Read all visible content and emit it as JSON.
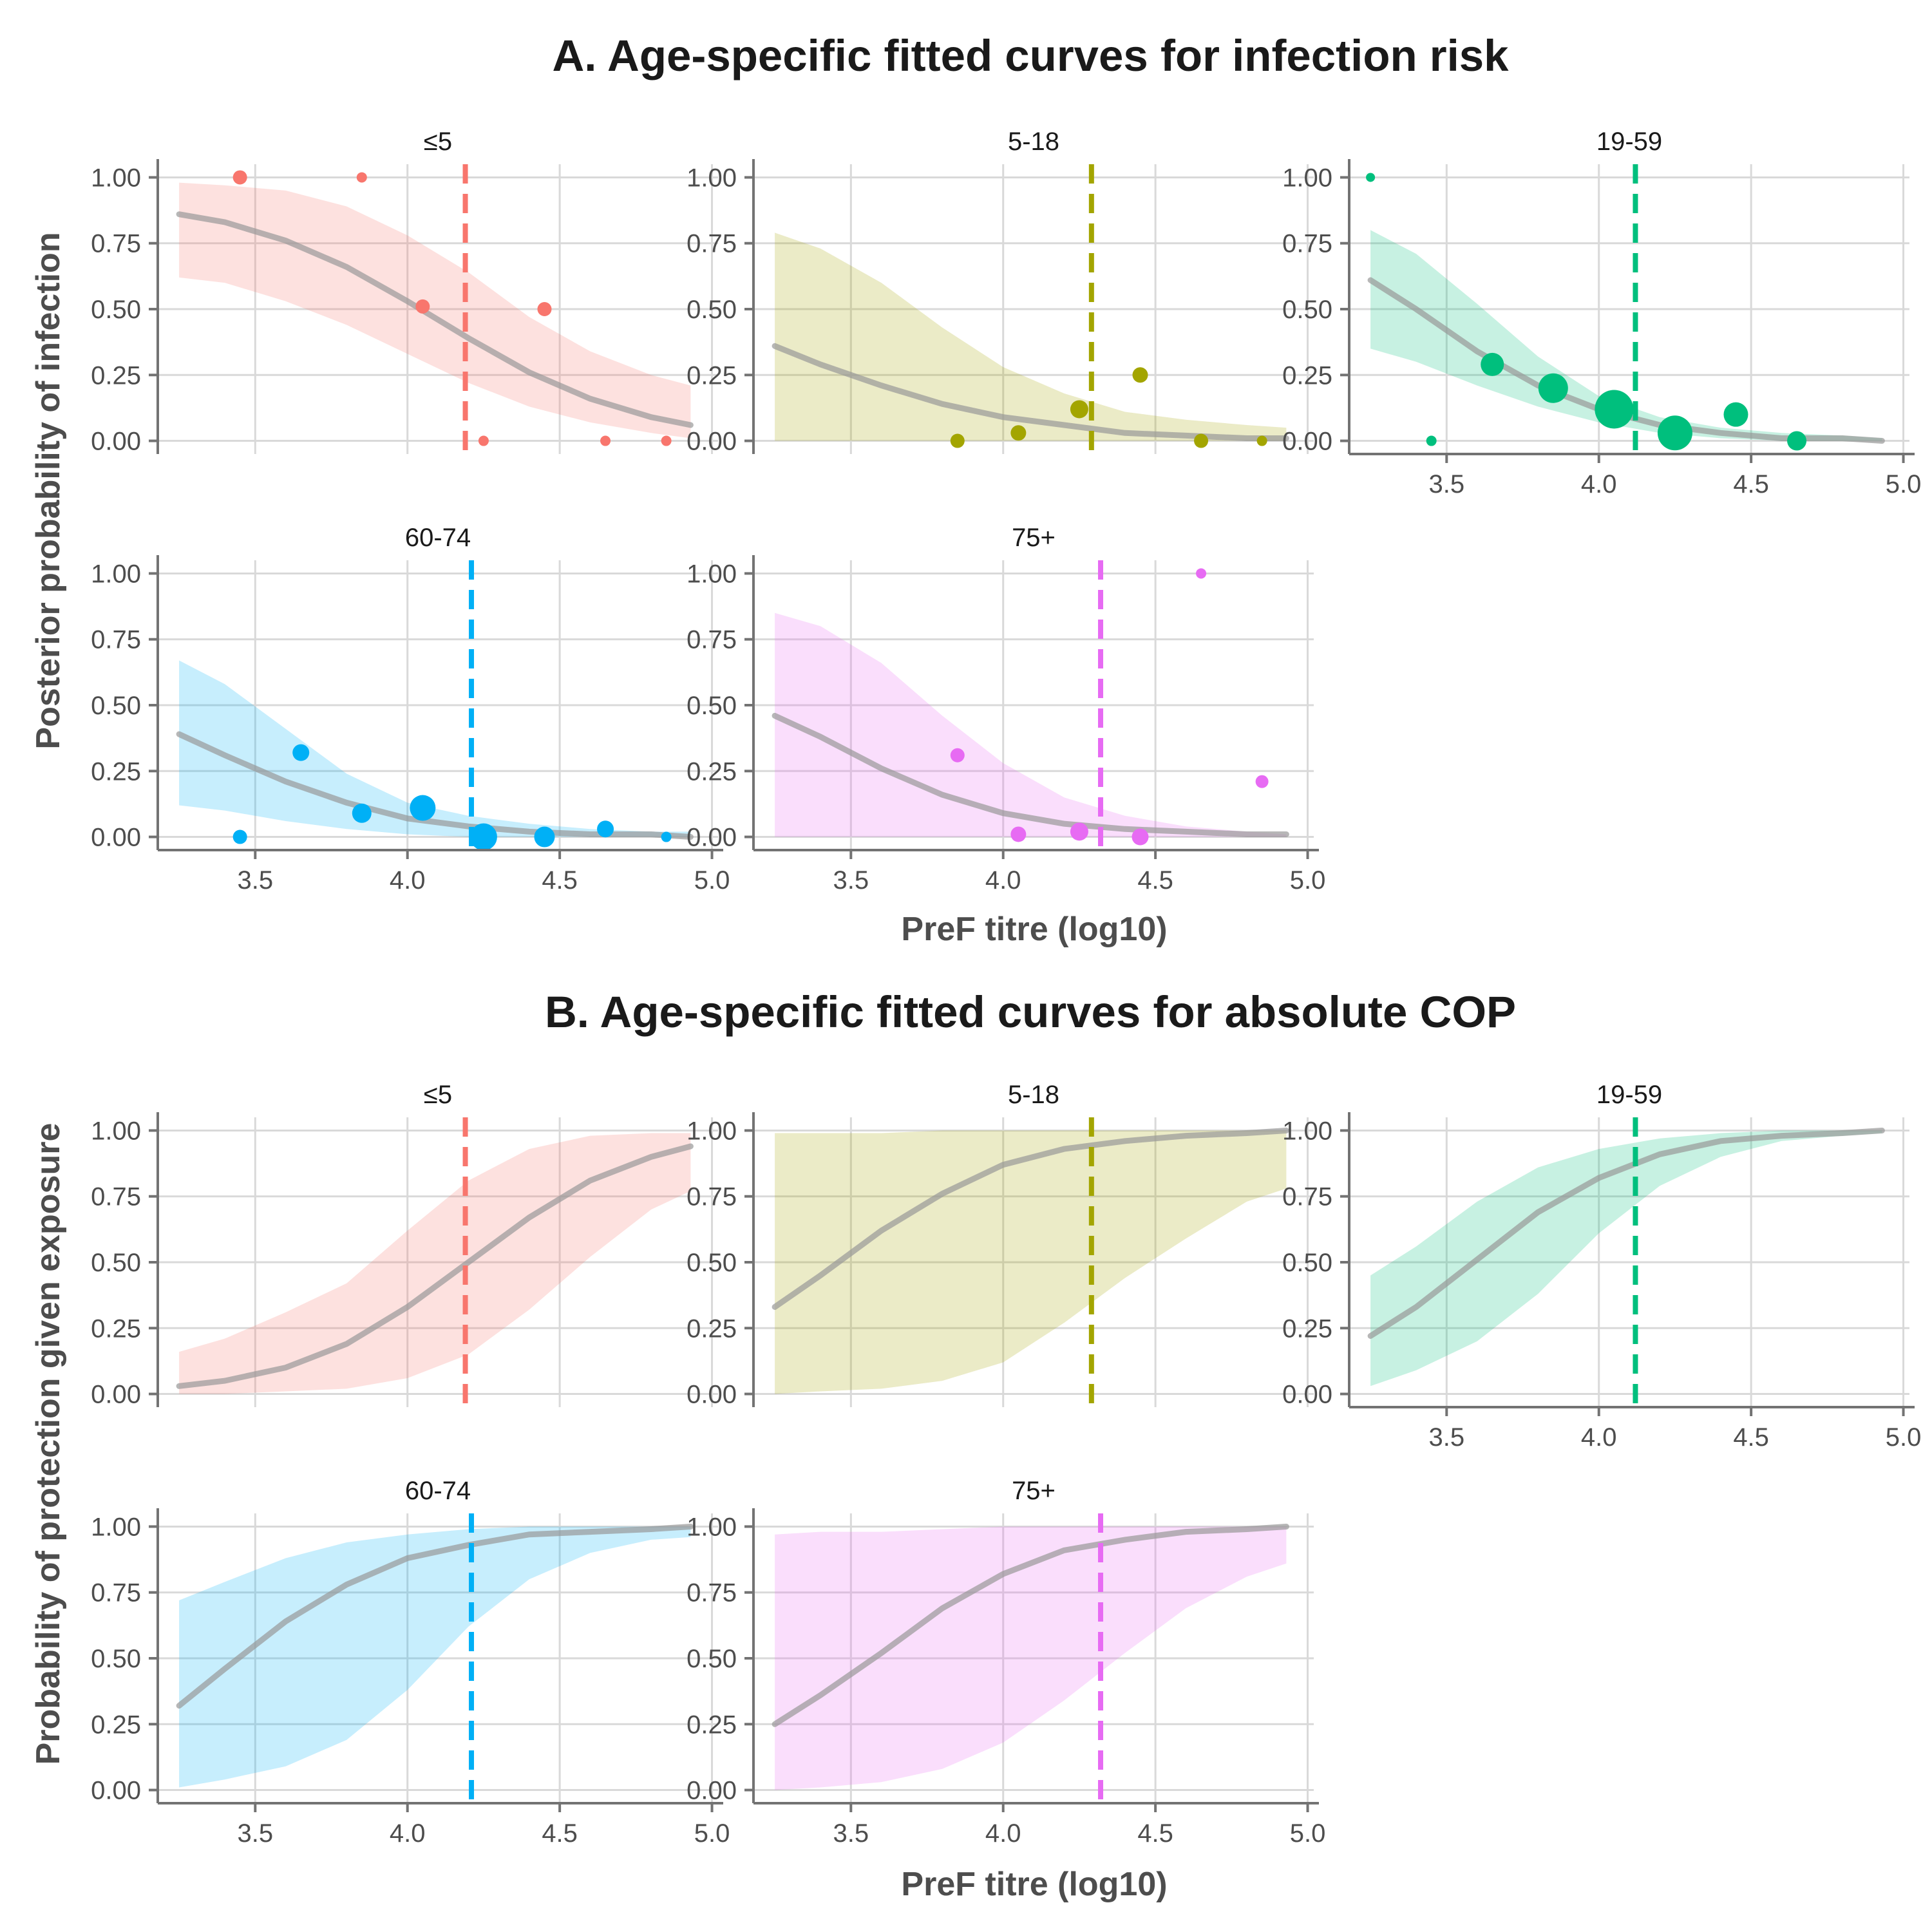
{
  "colors": {
    "le5": "#F8766D",
    "5-18": "#A3A500",
    "19-59": "#00BF7D",
    "60-74": "#00B0F6",
    "75+": "#E76BF3",
    "fitted_line": "#999999"
  },
  "chart_data": [
    {
      "title": "A. Age-specific fitted curves for infection risk",
      "type": "line",
      "xlabel": "PreF titre (log10)",
      "ylabel": "Posterior probability of infection",
      "xlim": [
        3.18,
        5.02
      ],
      "ylim": [
        -0.05,
        1.05
      ],
      "xticks": [
        "3.5",
        "4.0",
        "4.5",
        "5.0"
      ],
      "yticks": [
        "0.00",
        "0.25",
        "0.50",
        "0.75",
        "1.00"
      ],
      "grid": true,
      "panels": [
        {
          "label": "≤5",
          "color_key": "le5",
          "vline": 4.19,
          "curve_x": [
            3.25,
            3.4,
            3.6,
            3.8,
            4.0,
            4.2,
            4.4,
            4.6,
            4.8,
            4.93
          ],
          "curve_y": [
            0.86,
            0.83,
            0.76,
            0.66,
            0.53,
            0.39,
            0.26,
            0.16,
            0.09,
            0.06
          ],
          "band_low": [
            0.62,
            0.6,
            0.53,
            0.44,
            0.33,
            0.22,
            0.13,
            0.07,
            0.03,
            0.01
          ],
          "band_high": [
            0.98,
            0.97,
            0.95,
            0.89,
            0.78,
            0.64,
            0.47,
            0.34,
            0.25,
            0.21
          ],
          "points": [
            {
              "x": 3.45,
              "y": 1.0,
              "r": 11
            },
            {
              "x": 3.85,
              "y": 1.0,
              "r": 8
            },
            {
              "x": 4.05,
              "y": 0.51,
              "r": 11
            },
            {
              "x": 4.25,
              "y": 0.0,
              "r": 8
            },
            {
              "x": 4.45,
              "y": 0.5,
              "r": 11
            },
            {
              "x": 4.65,
              "y": 0.0,
              "r": 8
            },
            {
              "x": 4.85,
              "y": 0.0,
              "r": 8
            }
          ]
        },
        {
          "label": "5-18",
          "color_key": "5-18",
          "vline": 4.29,
          "curve_x": [
            3.25,
            3.4,
            3.6,
            3.8,
            4.0,
            4.2,
            4.4,
            4.6,
            4.8,
            4.93
          ],
          "curve_y": [
            0.36,
            0.29,
            0.21,
            0.14,
            0.09,
            0.06,
            0.03,
            0.02,
            0.01,
            0.01
          ],
          "band_low": [
            0.0,
            0.0,
            0.0,
            0.0,
            0.0,
            0.0,
            0.0,
            0.0,
            0.0,
            0.0
          ],
          "band_high": [
            0.79,
            0.73,
            0.6,
            0.43,
            0.28,
            0.18,
            0.11,
            0.08,
            0.06,
            0.05
          ],
          "points": [
            {
              "x": 3.85,
              "y": 0.0,
              "r": 11
            },
            {
              "x": 4.05,
              "y": 0.03,
              "r": 12
            },
            {
              "x": 4.25,
              "y": 0.12,
              "r": 14
            },
            {
              "x": 4.45,
              "y": 0.25,
              "r": 12
            },
            {
              "x": 4.65,
              "y": 0.0,
              "r": 11
            },
            {
              "x": 4.85,
              "y": 0.0,
              "r": 8
            }
          ]
        },
        {
          "label": "19-59",
          "color_key": "19-59",
          "vline": 4.12,
          "curve_x": [
            3.25,
            3.4,
            3.6,
            3.8,
            4.0,
            4.2,
            4.4,
            4.6,
            4.8,
            4.93
          ],
          "curve_y": [
            0.61,
            0.5,
            0.34,
            0.21,
            0.12,
            0.06,
            0.03,
            0.01,
            0.01,
            0.0
          ],
          "band_low": [
            0.35,
            0.3,
            0.21,
            0.13,
            0.07,
            0.03,
            0.01,
            0.0,
            0.0,
            0.0
          ],
          "band_high": [
            0.8,
            0.71,
            0.52,
            0.32,
            0.17,
            0.09,
            0.05,
            0.03,
            0.02,
            0.01
          ],
          "points": [
            {
              "x": 3.25,
              "y": 1.0,
              "r": 7
            },
            {
              "x": 3.45,
              "y": 0.0,
              "r": 8
            },
            {
              "x": 3.65,
              "y": 0.29,
              "r": 18
            },
            {
              "x": 3.85,
              "y": 0.2,
              "r": 23
            },
            {
              "x": 4.05,
              "y": 0.12,
              "r": 30
            },
            {
              "x": 4.25,
              "y": 0.03,
              "r": 27
            },
            {
              "x": 4.45,
              "y": 0.1,
              "r": 19
            },
            {
              "x": 4.65,
              "y": 0.0,
              "r": 15
            }
          ]
        },
        {
          "label": "60-74",
          "color_key": "60-74",
          "vline": 4.21,
          "curve_x": [
            3.25,
            3.4,
            3.6,
            3.8,
            4.0,
            4.2,
            4.4,
            4.6,
            4.8,
            4.93
          ],
          "curve_y": [
            0.39,
            0.31,
            0.21,
            0.13,
            0.07,
            0.04,
            0.02,
            0.01,
            0.01,
            0.0
          ],
          "band_low": [
            0.12,
            0.1,
            0.06,
            0.03,
            0.01,
            0.0,
            0.0,
            0.0,
            0.0,
            0.0
          ],
          "band_high": [
            0.67,
            0.58,
            0.41,
            0.24,
            0.13,
            0.08,
            0.05,
            0.03,
            0.02,
            0.02
          ],
          "points": [
            {
              "x": 3.45,
              "y": 0.0,
              "r": 11
            },
            {
              "x": 3.65,
              "y": 0.32,
              "r": 13
            },
            {
              "x": 3.85,
              "y": 0.09,
              "r": 15
            },
            {
              "x": 4.05,
              "y": 0.11,
              "r": 20
            },
            {
              "x": 4.25,
              "y": 0.0,
              "r": 21
            },
            {
              "x": 4.45,
              "y": 0.0,
              "r": 16
            },
            {
              "x": 4.65,
              "y": 0.03,
              "r": 13
            },
            {
              "x": 4.85,
              "y": 0.0,
              "r": 8
            }
          ]
        },
        {
          "label": "75+",
          "color_key": "75+",
          "vline": 4.32,
          "curve_x": [
            3.25,
            3.4,
            3.6,
            3.8,
            4.0,
            4.2,
            4.4,
            4.6,
            4.8,
            4.93
          ],
          "curve_y": [
            0.46,
            0.38,
            0.26,
            0.16,
            0.09,
            0.05,
            0.03,
            0.02,
            0.01,
            0.01
          ],
          "band_low": [
            0.0,
            0.0,
            0.0,
            0.0,
            0.0,
            0.0,
            0.0,
            0.0,
            0.0,
            0.0
          ],
          "band_high": [
            0.85,
            0.8,
            0.66,
            0.46,
            0.28,
            0.15,
            0.08,
            0.04,
            0.02,
            0.01
          ],
          "points": [
            {
              "x": 3.85,
              "y": 0.31,
              "r": 11
            },
            {
              "x": 4.05,
              "y": 0.01,
              "r": 12
            },
            {
              "x": 4.25,
              "y": 0.02,
              "r": 14
            },
            {
              "x": 4.45,
              "y": 0.0,
              "r": 13
            },
            {
              "x": 4.65,
              "y": 1.0,
              "r": 8
            },
            {
              "x": 4.85,
              "y": 0.21,
              "r": 10
            }
          ]
        }
      ]
    },
    {
      "title": "B. Age-specific fitted curves for absolute COP",
      "type": "line",
      "xlabel": "PreF titre (log10)",
      "ylabel": "Probability of protection given exposure",
      "xlim": [
        3.18,
        5.02
      ],
      "ylim": [
        -0.05,
        1.05
      ],
      "xticks": [
        "3.5",
        "4.0",
        "4.5",
        "5.0"
      ],
      "yticks": [
        "0.00",
        "0.25",
        "0.50",
        "0.75",
        "1.00"
      ],
      "grid": true,
      "panels": [
        {
          "label": "≤5",
          "color_key": "le5",
          "vline": 4.19,
          "curve_x": [
            3.25,
            3.4,
            3.6,
            3.8,
            4.0,
            4.2,
            4.4,
            4.6,
            4.8,
            4.93
          ],
          "curve_y": [
            0.03,
            0.05,
            0.1,
            0.19,
            0.33,
            0.5,
            0.67,
            0.81,
            0.9,
            0.94
          ],
          "band_low": [
            0.0,
            0.0,
            0.01,
            0.02,
            0.06,
            0.15,
            0.32,
            0.52,
            0.7,
            0.77
          ],
          "band_high": [
            0.16,
            0.21,
            0.31,
            0.42,
            0.62,
            0.81,
            0.93,
            0.98,
            0.99,
            0.99
          ],
          "points": []
        },
        {
          "label": "5-18",
          "color_key": "5-18",
          "vline": 4.29,
          "curve_x": [
            3.25,
            3.4,
            3.6,
            3.8,
            4.0,
            4.2,
            4.4,
            4.6,
            4.8,
            4.93
          ],
          "curve_y": [
            0.33,
            0.45,
            0.62,
            0.76,
            0.87,
            0.93,
            0.96,
            0.98,
            0.99,
            1.0
          ],
          "band_low": [
            0.0,
            0.01,
            0.02,
            0.05,
            0.12,
            0.27,
            0.44,
            0.59,
            0.73,
            0.78
          ],
          "band_high": [
            0.99,
            0.99,
            0.99,
            1.0,
            1.0,
            1.0,
            1.0,
            1.0,
            1.0,
            1.0
          ],
          "points": []
        },
        {
          "label": "19-59",
          "color_key": "19-59",
          "vline": 4.12,
          "curve_x": [
            3.25,
            3.4,
            3.6,
            3.8,
            4.0,
            4.2,
            4.4,
            4.6,
            4.8,
            4.93
          ],
          "curve_y": [
            0.22,
            0.33,
            0.51,
            0.69,
            0.82,
            0.91,
            0.96,
            0.98,
            0.99,
            1.0
          ],
          "band_low": [
            0.03,
            0.09,
            0.2,
            0.38,
            0.61,
            0.79,
            0.9,
            0.96,
            0.98,
            0.99
          ],
          "band_high": [
            0.45,
            0.56,
            0.73,
            0.86,
            0.93,
            0.97,
            0.99,
            1.0,
            1.0,
            1.0
          ],
          "points": []
        },
        {
          "label": "60-74",
          "color_key": "60-74",
          "vline": 4.21,
          "curve_x": [
            3.25,
            3.4,
            3.6,
            3.8,
            4.0,
            4.2,
            4.4,
            4.6,
            4.8,
            4.93
          ],
          "curve_y": [
            0.32,
            0.46,
            0.64,
            0.78,
            0.88,
            0.93,
            0.97,
            0.98,
            0.99,
            1.0
          ],
          "band_low": [
            0.01,
            0.04,
            0.09,
            0.19,
            0.38,
            0.62,
            0.8,
            0.9,
            0.95,
            0.96
          ],
          "band_high": [
            0.72,
            0.79,
            0.88,
            0.94,
            0.97,
            0.99,
            1.0,
            1.0,
            1.0,
            1.0
          ],
          "points": []
        },
        {
          "label": "75+",
          "color_key": "75+",
          "vline": 4.32,
          "curve_x": [
            3.25,
            3.4,
            3.6,
            3.8,
            4.0,
            4.2,
            4.4,
            4.6,
            4.8,
            4.93
          ],
          "curve_y": [
            0.25,
            0.36,
            0.52,
            0.69,
            0.82,
            0.91,
            0.95,
            0.98,
            0.99,
            1.0
          ],
          "band_low": [
            0.0,
            0.01,
            0.03,
            0.08,
            0.18,
            0.34,
            0.52,
            0.69,
            0.81,
            0.86
          ],
          "band_high": [
            0.97,
            0.98,
            0.98,
            0.99,
            1.0,
            1.0,
            1.0,
            1.0,
            1.0,
            1.0
          ],
          "points": []
        }
      ]
    }
  ]
}
